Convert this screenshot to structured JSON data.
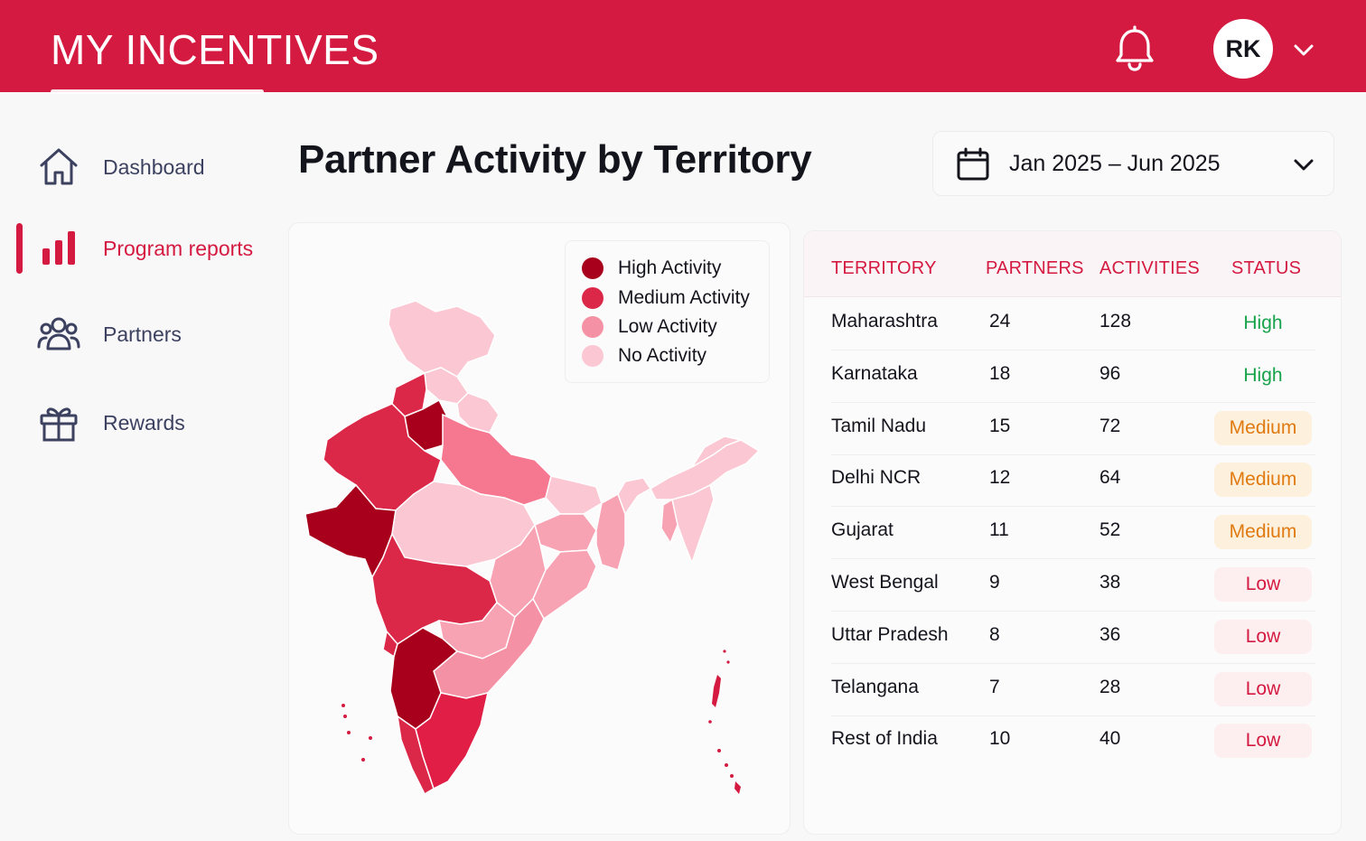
{
  "app": {
    "title": "MY INCENTIVES"
  },
  "header": {
    "avatar_initials": "RK",
    "icons": [
      "bell-icon",
      "chevron-down-icon"
    ]
  },
  "sidebar": {
    "items": [
      {
        "label": "Dashboard",
        "icon": "home-icon",
        "active": false
      },
      {
        "label": "Program reports",
        "icon": "bar-chart-icon",
        "active": true
      },
      {
        "label": "Partners",
        "icon": "users-icon",
        "active": false
      },
      {
        "label": "Rewards",
        "icon": "gift-icon",
        "active": false
      }
    ]
  },
  "page": {
    "title": "Partner Activity by Territory"
  },
  "date_range": {
    "value": "Jan 2025 – Jun 2025"
  },
  "colors": {
    "brand": "#d41a40",
    "high": "#a8001c",
    "medium": "#dc2848",
    "low": "#f591a4",
    "none": "#fbc7d2",
    "status_high": "#17a34a",
    "status_medium": "#e07a10",
    "status_low": "#d41a40"
  },
  "map": {
    "legend": [
      {
        "label": "High Activity",
        "color": "#a8001c"
      },
      {
        "label": "Medium Activity",
        "color": "#dc2848"
      },
      {
        "label": "Low Activity",
        "color": "#f591a4"
      },
      {
        "label": "No Activity",
        "color": "#fbc7d2"
      }
    ]
  },
  "table": {
    "headers": [
      "TERRITORY",
      "PARTNERS",
      "ACTIVITIES",
      "STATUS"
    ],
    "rows": [
      {
        "territory": "Maharashtra",
        "partners": "24",
        "activities": "128",
        "status": "High"
      },
      {
        "territory": "Karnataka",
        "partners": "18",
        "activities": "96",
        "status": "High"
      },
      {
        "territory": "Tamil Nadu",
        "partners": "15",
        "activities": "72",
        "status": "Medium"
      },
      {
        "territory": "Delhi NCR",
        "partners": "12",
        "activities": "64",
        "status": "Medium"
      },
      {
        "territory": "Gujarat",
        "partners": "11",
        "activities": "52",
        "status": "Medium"
      },
      {
        "territory": "West Bengal",
        "partners": "9",
        "activities": "38",
        "status": "Low"
      },
      {
        "territory": "Uttar Pradesh",
        "partners": "8",
        "activities": "36",
        "status": "Low"
      },
      {
        "territory": "Telangana",
        "partners": "7",
        "activities": "28",
        "status": "Low"
      },
      {
        "territory": "Rest of India",
        "partners": "10",
        "activities": "40",
        "status": "Low"
      }
    ]
  }
}
